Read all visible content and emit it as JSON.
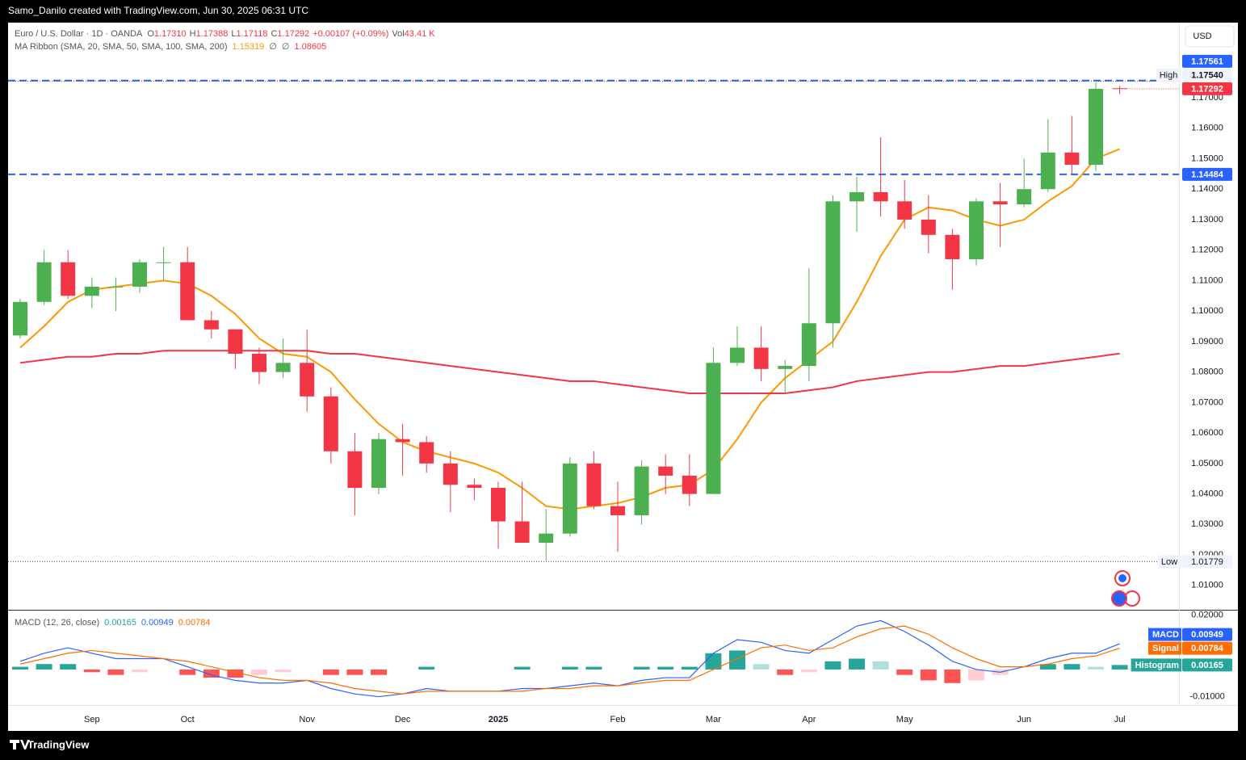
{
  "header": "Samo_Danilo created with TradingView.com, Jun 30, 2025 06:31 UTC",
  "footer": "TradingView",
  "chart_data": [
    {
      "type": "candlestick",
      "title": "Euro / U.S. Dollar · 1D · OANDA",
      "currency": "USD",
      "legend": {
        "items": [
          {
            "key": "O",
            "value": "1.17310"
          },
          {
            "key": "H",
            "value": "1.17388"
          },
          {
            "key": "L",
            "value": "1.17118"
          },
          {
            "key": "C",
            "value": "1.17292"
          }
        ],
        "change": "+0.00107 (+0.09%)",
        "volume_key": "Vol",
        "volume": "43.41 K",
        "color": "#f23645"
      },
      "categories": [
        null,
        null,
        null,
        "Sep",
        null,
        null,
        null,
        "Oct",
        null,
        null,
        null,
        null,
        "Nov",
        null,
        null,
        null,
        "Dec",
        null,
        null,
        null,
        "2025",
        null,
        null,
        null,
        null,
        "Feb",
        null,
        null,
        null,
        "Mar",
        null,
        null,
        null,
        "Apr",
        null,
        null,
        null,
        "May",
        null,
        null,
        null,
        null,
        "Jun",
        null,
        null,
        null,
        "Jul"
      ],
      "open": [
        1.092,
        1.103,
        1.116,
        1.105,
        1.108,
        1.108,
        1.116,
        1.116,
        1.097,
        1.094,
        1.086,
        1.08,
        1.083,
        1.072,
        1.054,
        1.042,
        1.058,
        1.057,
        1.05,
        1.043,
        1.042,
        1.031,
        1.024,
        1.027,
        1.05,
        1.036,
        1.033,
        1.049,
        1.046,
        1.04,
        1.083,
        1.088,
        1.081,
        1.082,
        1.096,
        1.136,
        1.139,
        1.136,
        1.13,
        1.125,
        1.117,
        1.136,
        1.135,
        1.14,
        1.152,
        1.148,
        1.1731
      ],
      "high": [
        1.104,
        1.12,
        1.12,
        1.111,
        1.111,
        1.117,
        1.121,
        1.121,
        1.1,
        1.094,
        1.088,
        1.091,
        1.094,
        1.075,
        1.06,
        1.06,
        1.063,
        1.059,
        1.054,
        1.045,
        1.044,
        1.044,
        1.035,
        1.052,
        1.054,
        1.044,
        1.051,
        1.053,
        1.053,
        1.088,
        1.095,
        1.095,
        1.084,
        1.114,
        1.138,
        1.144,
        1.157,
        1.143,
        1.138,
        1.127,
        1.137,
        1.142,
        1.15,
        1.163,
        1.164,
        1.175,
        1.17388
      ],
      "low": [
        1.091,
        1.102,
        1.104,
        1.101,
        1.1,
        1.106,
        1.11,
        1.097,
        1.091,
        1.081,
        1.076,
        1.078,
        1.067,
        1.05,
        1.033,
        1.04,
        1.046,
        1.047,
        1.034,
        1.038,
        1.022,
        1.024,
        1.018,
        1.026,
        1.035,
        1.021,
        1.03,
        1.04,
        1.036,
        1.04,
        1.082,
        1.077,
        1.073,
        1.077,
        1.088,
        1.126,
        1.131,
        1.127,
        1.119,
        1.107,
        1.115,
        1.121,
        1.134,
        1.139,
        1.145,
        1.146,
        1.17118
      ],
      "close": [
        1.103,
        1.116,
        1.105,
        1.108,
        1.108,
        1.116,
        1.116,
        1.097,
        1.094,
        1.086,
        1.08,
        1.083,
        1.072,
        1.054,
        1.042,
        1.058,
        1.057,
        1.05,
        1.043,
        1.042,
        1.031,
        1.024,
        1.027,
        1.05,
        1.036,
        1.033,
        1.049,
        1.046,
        1.04,
        1.083,
        1.088,
        1.081,
        1.082,
        1.096,
        1.136,
        1.139,
        1.136,
        1.13,
        1.125,
        1.117,
        1.136,
        1.135,
        1.14,
        1.152,
        1.148,
        1.1729,
        1.17292
      ],
      "up_color": "#4caf50",
      "down_color": "#f23645",
      "ma_ribbon": {
        "title": "MA Ribbon (SMA, 20, SMA, 50, SMA, 100, SMA, 200)",
        "series": [
          {
            "color": "#ff9800",
            "values": [
              1.088,
              1.095,
              1.103,
              1.107,
              1.108,
              1.109,
              1.11,
              1.109,
              1.105,
              1.099,
              1.091,
              1.086,
              1.085,
              1.08,
              1.071,
              1.063,
              1.057,
              1.054,
              1.052,
              1.05,
              1.047,
              1.042,
              1.036,
              1.035,
              1.036,
              1.037,
              1.039,
              1.042,
              1.043,
              1.048,
              1.058,
              1.07,
              1.078,
              1.084,
              1.09,
              1.103,
              1.118,
              1.13,
              1.134,
              1.133,
              1.13,
              1.128,
              1.13,
              1.136,
              1.141,
              1.15,
              1.15319
            ]
          },
          {
            "color": "#f23645",
            "values": [
              1.083,
              1.084,
              1.085,
              1.085,
              1.086,
              1.086,
              1.087,
              1.087,
              1.087,
              1.087,
              1.087,
              1.087,
              1.087,
              1.086,
              1.086,
              1.085,
              1.084,
              1.083,
              1.082,
              1.081,
              1.08,
              1.079,
              1.078,
              1.077,
              1.077,
              1.076,
              1.075,
              1.074,
              1.073,
              1.073,
              1.073,
              1.073,
              1.073,
              1.074,
              1.075,
              1.077,
              1.078,
              1.079,
              1.08,
              1.08,
              1.081,
              1.082,
              1.082,
              1.083,
              1.084,
              1.085,
              1.08605
            ]
          }
        ],
        "empty_markers": [
          "∅",
          "∅"
        ]
      },
      "levels": [
        {
          "value": 1.17561,
          "color": "#2962ff",
          "style": "dashed"
        },
        {
          "value": 1.14484,
          "color": "#2962ff",
          "style": "dashed"
        }
      ],
      "high_mark": {
        "name": "High",
        "value": 1.1754,
        "label": "1.17540"
      },
      "low_mark": {
        "name": "Low",
        "value": 1.01779
      },
      "ylim": [
        1.002,
        1.1941
      ],
      "yticks": [
        {
          "value": 1.01,
          "label": "1.01000"
        },
        {
          "value": 1.02,
          "label": "1.02000"
        },
        {
          "value": 1.03,
          "label": "1.03000"
        },
        {
          "value": 1.04,
          "label": "1.04000"
        },
        {
          "value": 1.05,
          "label": "1.05000"
        },
        {
          "value": 1.06,
          "label": "1.06000"
        },
        {
          "value": 1.07,
          "label": "1.07000"
        },
        {
          "value": 1.08,
          "label": "1.08000"
        },
        {
          "value": 1.09,
          "label": "1.09000"
        },
        {
          "value": 1.1,
          "label": "1.10000"
        },
        {
          "value": 1.11,
          "label": "1.11000"
        },
        {
          "value": 1.12,
          "label": "1.12000"
        },
        {
          "value": 1.13,
          "label": "1.13000"
        },
        {
          "value": 1.14,
          "label": "1.14000"
        },
        {
          "value": 1.15,
          "label": "1.15000"
        },
        {
          "value": 1.16,
          "label": "1.16000"
        },
        {
          "value": 1.17,
          "label": "1.17000"
        }
      ]
    },
    {
      "type": "macd",
      "title": "MACD (12, 26, close)",
      "series": [
        {
          "name": "Histogram",
          "kind": "histogram",
          "color": "#26a69a",
          "colors": [
            "#26a69a",
            "#b2dfdb",
            "#ff5252",
            "#ffcdd2"
          ],
          "values": [
            0.001,
            0.002,
            0.002,
            -0.001,
            -0.002,
            -0.001,
            0,
            -0.002,
            -0.003,
            -0.003,
            -0.002,
            -0.001,
            0,
            -0.002,
            -0.002,
            -0.002,
            0,
            0.001,
            0,
            0,
            0,
            0.001,
            0,
            0.001,
            0.001,
            0,
            0.001,
            0.001,
            0.001,
            0.006,
            0.007,
            0.002,
            -0.002,
            -0.001,
            0.003,
            0.004,
            0.003,
            -0.002,
            -0.004,
            -0.005,
            -0.004,
            -0.002,
            0,
            0.002,
            0.002,
            0.001,
            0.00165
          ]
        },
        {
          "name": "MACD",
          "kind": "line",
          "color": "#2962ff",
          "values": [
            0.003,
            0.006,
            0.008,
            0.006,
            0.004,
            0.004,
            0.004,
            0.001,
            -0.002,
            -0.004,
            -0.005,
            -0.005,
            -0.004,
            -0.007,
            -0.009,
            -0.01,
            -0.009,
            -0.007,
            -0.008,
            -0.008,
            -0.008,
            -0.007,
            -0.007,
            -0.006,
            -0.005,
            -0.006,
            -0.004,
            -0.003,
            -0.003,
            0.006,
            0.011,
            0.01,
            0.007,
            0.006,
            0.011,
            0.016,
            0.018,
            0.014,
            0.009,
            0.003,
            0.0,
            -0.001,
            0.001,
            0.004,
            0.006,
            0.006,
            0.00949
          ]
        },
        {
          "name": "Signal",
          "kind": "line",
          "color": "#ff6d00",
          "values": [
            0.002,
            0.004,
            0.006,
            0.007,
            0.006,
            0.005,
            0.004,
            0.003,
            0.001,
            -0.001,
            -0.003,
            -0.004,
            -0.004,
            -0.005,
            -0.007,
            -0.008,
            -0.009,
            -0.008,
            -0.008,
            -0.008,
            -0.008,
            -0.008,
            -0.007,
            -0.007,
            -0.006,
            -0.006,
            -0.005,
            -0.004,
            -0.004,
            0.0,
            0.004,
            0.008,
            0.009,
            0.007,
            0.008,
            0.012,
            0.015,
            0.016,
            0.013,
            0.008,
            0.004,
            0.001,
            0.001,
            0.002,
            0.004,
            0.005,
            0.00784
          ]
        }
      ],
      "ylim": [
        -0.0131,
        0.0214
      ],
      "yticks": [
        {
          "value": 0.02,
          "label": "0.02000"
        },
        {
          "value": -0.01,
          "label": "-0.01000"
        }
      ]
    }
  ]
}
